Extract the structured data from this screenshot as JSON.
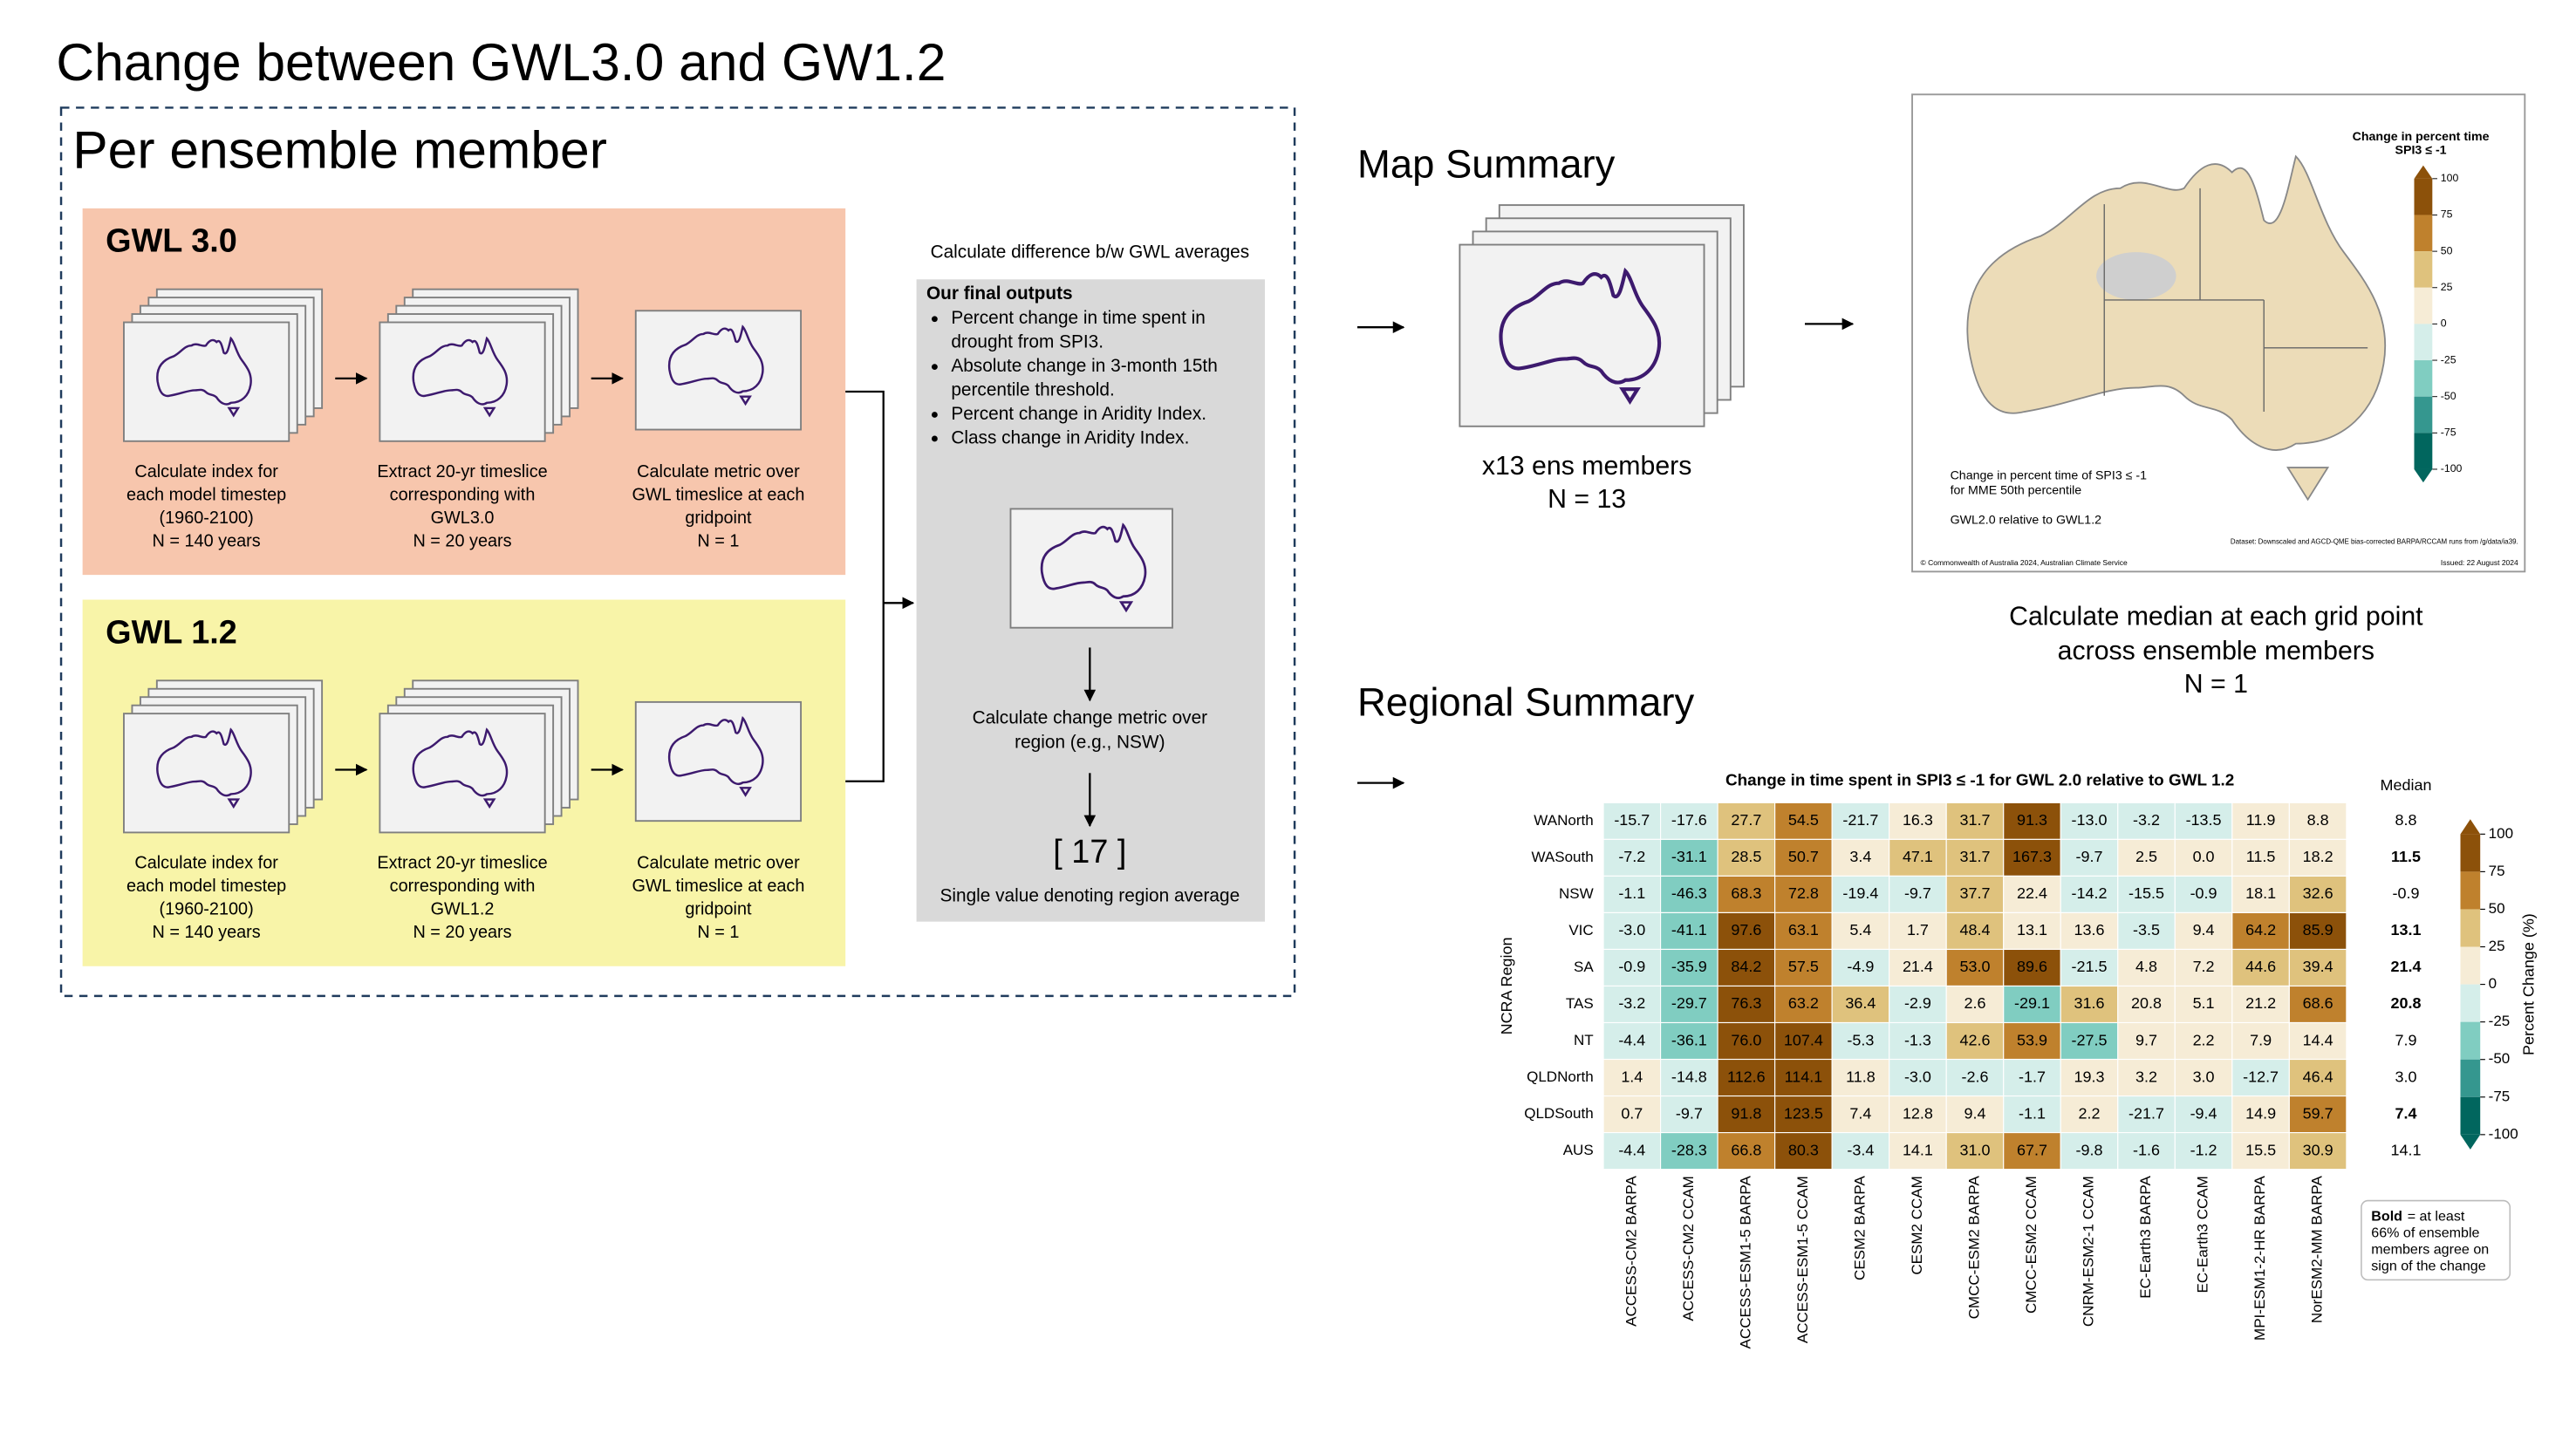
{
  "title": "Change between GWL3.0 and GW1.2",
  "ensemble_panel": {
    "title": "Per ensemble member",
    "groups": [
      {
        "title": "GWL 3.0",
        "steps": [
          {
            "lines": [
              "Calculate index for",
              "each model timestep",
              "(1960-2100)"
            ],
            "n": "N = 140 years"
          },
          {
            "lines": [
              "Extract 20-yr timeslice",
              "corresponding with",
              "GWL3.0"
            ],
            "n": "N = 20 years"
          },
          {
            "lines": [
              "Calculate metric over",
              "GWL timeslice at each",
              "gridpoint"
            ],
            "n": "N = 1"
          }
        ]
      },
      {
        "title": "GWL 1.2",
        "steps": [
          {
            "lines": [
              "Calculate index for",
              "each model timestep",
              "(1960-2100)"
            ],
            "n": "N = 140 years"
          },
          {
            "lines": [
              "Extract 20-yr timeslice",
              "corresponding with",
              "GWL1.2"
            ],
            "n": "N = 20 years"
          },
          {
            "lines": [
              "Calculate metric over",
              "GWL timeslice at each",
              "gridpoint"
            ],
            "n": "N = 1"
          }
        ]
      }
    ],
    "difference_label": "Calculate difference b/w GWL averages",
    "outputs": {
      "title": "Our final outputs",
      "items": [
        [
          "Percent change in time spent in",
          "drought from SPI3."
        ],
        [
          "Absolute change in 3-month 15th",
          "percentile threshold."
        ],
        [
          "Percent change in Aridity Index."
        ],
        [
          "Class change in Aridity Index."
        ]
      ]
    },
    "region_step": [
      "Calculate change metric over",
      "region (e.g., NSW)"
    ],
    "region_value": "[ 17 ]",
    "region_value_note": "Single value denoting region average"
  },
  "map_summary": {
    "title": "Map Summary",
    "members": "x13 ens members",
    "n": "N = 13",
    "map": {
      "legend_title": [
        "Change in percent time",
        "SPI3 ≤ -1"
      ],
      "colorbar_ticks": [
        100,
        75,
        50,
        25,
        0,
        -25,
        -50,
        -75,
        -100
      ],
      "caption": [
        "Change in percent time of SPI3 ≤ -1",
        "for MME 50th percentile"
      ],
      "subcaption": "GWL2.0 relative to GWL1.2",
      "dataset_note": "Dataset: Downscaled and AGCD-QME bias-corrected BARPA/RCCAM runs from /g/data/ia39.",
      "copyright": "© Commonwealth of Australia 2024, Australian Climate Service",
      "issued": "Issued: 22 August 2024"
    },
    "median_note": [
      "Calculate median at each grid point",
      "across ensemble members"
    ],
    "median_n": "N = 1"
  },
  "regional_summary": {
    "title": "Regional Summary",
    "heatmap": {
      "title": "Change in time spent in SPI3 ≤ -1 for GWL 2.0 relative to GWL 1.2",
      "median_header": "Median",
      "y_label": "NCRA Region",
      "columns": [
        "ACCESS-CM2 BARPA",
        "ACCESS-CM2 CCAM",
        "ACCESS-ESM1-5 BARPA",
        "ACCESS-ESM1-5 CCAM",
        "CESM2 BARPA",
        "CESM2 CCAM",
        "CMCC-ESM2 BARPA",
        "CMCC-ESM2 CCAM",
        "CNRM-ESM2-1 CCAM",
        "EC-Earth3 BARPA",
        "EC-Earth3 CCAM",
        "MPI-ESM1-2-HR BARPA",
        "NorESM2-MM BARPA"
      ],
      "rows": [
        "WANorth",
        "WASouth",
        "NSW",
        "VIC",
        "SA",
        "TAS",
        "NT",
        "QLDNorth",
        "QLDSouth",
        "AUS"
      ],
      "values": [
        [
          "-15.7",
          "-17.6",
          "27.7",
          "54.5",
          "-21.7",
          "16.3",
          "31.7",
          "91.3",
          "-13.0",
          "-3.2",
          "-13.5",
          "11.9",
          "8.8"
        ],
        [
          "-7.2",
          "-31.1",
          "28.5",
          "50.7",
          "3.4",
          "47.1",
          "31.7",
          "167.3",
          "-9.7",
          "2.5",
          "0.0",
          "11.5",
          "18.2"
        ],
        [
          "-1.1",
          "-46.3",
          "68.3",
          "72.8",
          "-19.4",
          "-9.7",
          "37.7",
          "22.4",
          "-14.2",
          "-15.5",
          "-0.9",
          "18.1",
          "32.6"
        ],
        [
          "-3.0",
          "-41.1",
          "97.6",
          "63.1",
          "5.4",
          "1.7",
          "48.4",
          "13.1",
          "13.6",
          "-3.5",
          "9.4",
          "64.2",
          "85.9"
        ],
        [
          "-0.9",
          "-35.9",
          "84.2",
          "57.5",
          "-4.9",
          "21.4",
          "53.0",
          "89.6",
          "-21.5",
          "4.8",
          "7.2",
          "44.6",
          "39.4"
        ],
        [
          "-3.2",
          "-29.7",
          "76.3",
          "63.2",
          "36.4",
          "-2.9",
          "2.6",
          "-29.1",
          "31.6",
          "20.8",
          "5.1",
          "21.2",
          "68.6"
        ],
        [
          "-4.4",
          "-36.1",
          "76.0",
          "107.4",
          "-5.3",
          "-1.3",
          "42.6",
          "53.9",
          "-27.5",
          "9.7",
          "2.2",
          "7.9",
          "14.4"
        ],
        [
          "1.4",
          "-14.8",
          "112.6",
          "114.1",
          "11.8",
          "-3.0",
          "-2.6",
          "-1.7",
          "19.3",
          "3.2",
          "3.0",
          "-12.7",
          "46.4"
        ],
        [
          "0.7",
          "-9.7",
          "91.8",
          "123.5",
          "7.4",
          "12.8",
          "9.4",
          "-1.1",
          "2.2",
          "-21.7",
          "-9.4",
          "14.9",
          "59.7"
        ],
        [
          "-4.4",
          "-28.3",
          "66.8",
          "80.3",
          "-3.4",
          "14.1",
          "31.0",
          "67.7",
          "-9.8",
          "-1.6",
          "-1.2",
          "15.5",
          "30.9"
        ]
      ],
      "median": [
        "8.8",
        "11.5",
        "-0.9",
        "13.1",
        "21.4",
        "20.8",
        "7.9",
        "3.0",
        "7.4",
        "14.1"
      ],
      "median_bold": [
        false,
        true,
        false,
        true,
        true,
        true,
        false,
        false,
        true,
        false
      ],
      "colorbar_label": "Percent Change (%)",
      "colorbar_ticks": [
        100,
        75,
        50,
        25,
        0,
        -25,
        -50,
        -75,
        -100
      ],
      "legend_bold": "Bold",
      "legend_text": [
        "= at least",
        "66% of ensemble",
        "members agree on",
        "sign of the change"
      ]
    }
  }
}
